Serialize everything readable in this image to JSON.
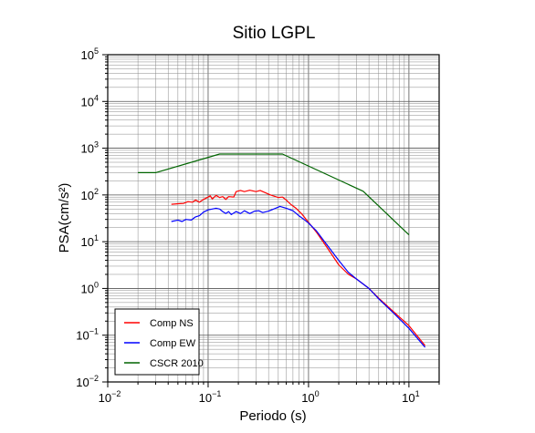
{
  "chart_data": {
    "type": "line",
    "title": "Sitio LGPL",
    "xlabel": "Periodo (s)",
    "ylabel": "PSA(cm/s²)",
    "x_scale": "log",
    "y_scale": "log",
    "xlim": [
      0.01,
      20
    ],
    "ylim": [
      0.01,
      100000
    ],
    "grid": true,
    "legend_position": "bottom-left",
    "x_ticks": [
      {
        "value": 0.01,
        "base": "10",
        "exp": "−2"
      },
      {
        "value": 0.1,
        "base": "10",
        "exp": "−1"
      },
      {
        "value": 1,
        "base": "10",
        "exp": "0"
      },
      {
        "value": 10,
        "base": "10",
        "exp": "1"
      }
    ],
    "y_ticks": [
      {
        "value": 0.01,
        "base": "10",
        "exp": "−2"
      },
      {
        "value": 0.1,
        "base": "10",
        "exp": "−1"
      },
      {
        "value": 1,
        "base": "10",
        "exp": "0"
      },
      {
        "value": 10,
        "base": "10",
        "exp": "1"
      },
      {
        "value": 100,
        "base": "10",
        "exp": "2"
      },
      {
        "value": 1000,
        "base": "10",
        "exp": "3"
      },
      {
        "value": 10000,
        "base": "10",
        "exp": "4"
      },
      {
        "value": 100000,
        "base": "10",
        "exp": "5"
      }
    ],
    "series": [
      {
        "name": "Comp NS",
        "color": "#ff0000",
        "points": [
          [
            0.043,
            63
          ],
          [
            0.05,
            65
          ],
          [
            0.057,
            66
          ],
          [
            0.063,
            72
          ],
          [
            0.07,
            70
          ],
          [
            0.075,
            78
          ],
          [
            0.082,
            70
          ],
          [
            0.09,
            80
          ],
          [
            0.1,
            90
          ],
          [
            0.105,
            96
          ],
          [
            0.11,
            82
          ],
          [
            0.12,
            98
          ],
          [
            0.13,
            88
          ],
          [
            0.14,
            92
          ],
          [
            0.15,
            80
          ],
          [
            0.16,
            92
          ],
          [
            0.18,
            90
          ],
          [
            0.19,
            118
          ],
          [
            0.21,
            125
          ],
          [
            0.23,
            118
          ],
          [
            0.26,
            126
          ],
          [
            0.3,
            118
          ],
          [
            0.33,
            125
          ],
          [
            0.37,
            112
          ],
          [
            0.42,
            100
          ],
          [
            0.5,
            88
          ],
          [
            0.55,
            90
          ],
          [
            0.6,
            78
          ],
          [
            0.67,
            62
          ],
          [
            0.75,
            52
          ],
          [
            0.85,
            40
          ],
          [
            1.0,
            26
          ],
          [
            1.2,
            16
          ],
          [
            1.5,
            8
          ],
          [
            2.0,
            3.2
          ],
          [
            2.5,
            2.0
          ],
          [
            3.0,
            1.6
          ],
          [
            4.0,
            1.0
          ],
          [
            5.0,
            0.62
          ],
          [
            7.0,
            0.32
          ],
          [
            10,
            0.16
          ],
          [
            14.5,
            0.06
          ]
        ]
      },
      {
        "name": "Comp EW",
        "color": "#0000ff",
        "points": [
          [
            0.043,
            27
          ],
          [
            0.05,
            29
          ],
          [
            0.055,
            27
          ],
          [
            0.06,
            30
          ],
          [
            0.068,
            29
          ],
          [
            0.075,
            34
          ],
          [
            0.082,
            36
          ],
          [
            0.09,
            43
          ],
          [
            0.1,
            48
          ],
          [
            0.11,
            50
          ],
          [
            0.12,
            52
          ],
          [
            0.13,
            50
          ],
          [
            0.14,
            44
          ],
          [
            0.15,
            40
          ],
          [
            0.16,
            44
          ],
          [
            0.17,
            38
          ],
          [
            0.19,
            44
          ],
          [
            0.21,
            40
          ],
          [
            0.23,
            46
          ],
          [
            0.26,
            40
          ],
          [
            0.29,
            45
          ],
          [
            0.32,
            46
          ],
          [
            0.35,
            42
          ],
          [
            0.4,
            45
          ],
          [
            0.45,
            50
          ],
          [
            0.52,
            57
          ],
          [
            0.6,
            52
          ],
          [
            0.7,
            46
          ],
          [
            0.8,
            36
          ],
          [
            0.9,
            30
          ],
          [
            1.0,
            25
          ],
          [
            1.2,
            17
          ],
          [
            1.5,
            9
          ],
          [
            2.0,
            4.0
          ],
          [
            2.5,
            2.2
          ],
          [
            3.0,
            1.6
          ],
          [
            4.0,
            1.0
          ],
          [
            5.0,
            0.6
          ],
          [
            7.0,
            0.3
          ],
          [
            10,
            0.14
          ],
          [
            14.5,
            0.055
          ]
        ]
      },
      {
        "name": "CSCR 2010",
        "color": "#006400",
        "points": [
          [
            0.02,
            300
          ],
          [
            0.03,
            300
          ],
          [
            0.13,
            750
          ],
          [
            0.55,
            750
          ],
          [
            3.5,
            120
          ],
          [
            10,
            14
          ]
        ]
      }
    ]
  }
}
